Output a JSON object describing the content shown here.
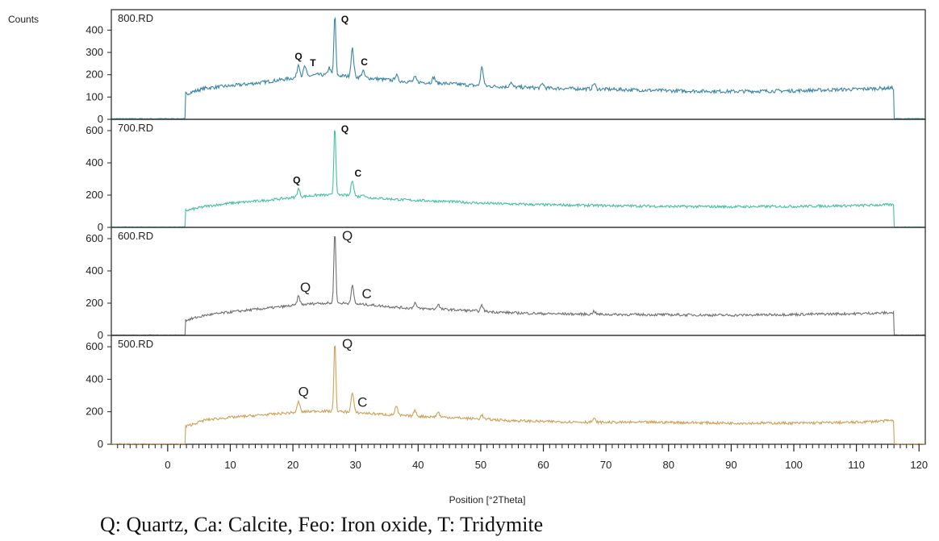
{
  "chart_data": {
    "type": "line",
    "ylabel": "Counts",
    "xlabel": "Position [°2Theta]",
    "xlim": [
      -9,
      121
    ],
    "x_ticks": [
      0,
      10,
      20,
      30,
      40,
      50,
      60,
      70,
      80,
      90,
      100,
      110,
      120
    ],
    "panels": [
      {
        "name": "800.RD",
        "color": "#3b86a6",
        "ylim": [
          0,
          470
        ],
        "y_ticks": [
          0,
          100,
          200,
          300,
          400
        ],
        "baseline": [
          [
            3,
            115
          ],
          [
            6,
            140
          ],
          [
            10,
            150
          ],
          [
            15,
            165
          ],
          [
            20,
            185
          ],
          [
            24,
            200
          ],
          [
            28,
            195
          ],
          [
            32,
            185
          ],
          [
            38,
            170
          ],
          [
            45,
            160
          ],
          [
            50,
            150
          ],
          [
            55,
            145
          ],
          [
            60,
            140
          ],
          [
            70,
            135
          ],
          [
            80,
            128
          ],
          [
            90,
            125
          ],
          [
            100,
            128
          ],
          [
            110,
            135
          ],
          [
            115,
            140
          ]
        ],
        "peaks": [
          [
            20.9,
            60
          ],
          [
            21.9,
            45
          ],
          [
            25.8,
            35
          ],
          [
            26.7,
            270
          ],
          [
            29.5,
            125
          ],
          [
            31.2,
            30
          ],
          [
            36.5,
            25
          ],
          [
            39.5,
            20
          ],
          [
            42.5,
            25
          ],
          [
            50.2,
            85
          ],
          [
            54.8,
            20
          ],
          [
            59.9,
            20
          ],
          [
            68.1,
            25
          ]
        ],
        "annotations": [
          {
            "text": "Q",
            "x": 20.9
          },
          {
            "text": "T",
            "x": 23.2
          },
          {
            "text": "Q",
            "x": 28.3
          },
          {
            "text": "C",
            "x": 31.4
          }
        ]
      },
      {
        "name": "700.RD",
        "color": "#44c0a0",
        "ylim": [
          0,
          640
        ],
        "y_ticks": [
          0,
          200,
          400,
          600
        ],
        "baseline": [
          [
            3,
            105
          ],
          [
            6,
            130
          ],
          [
            10,
            150
          ],
          [
            15,
            165
          ],
          [
            20,
            185
          ],
          [
            24,
            200
          ],
          [
            28,
            200
          ],
          [
            32,
            185
          ],
          [
            38,
            170
          ],
          [
            45,
            160
          ],
          [
            50,
            150
          ],
          [
            55,
            145
          ],
          [
            60,
            140
          ],
          [
            70,
            135
          ],
          [
            80,
            130
          ],
          [
            90,
            128
          ],
          [
            100,
            130
          ],
          [
            110,
            135
          ],
          [
            115,
            140
          ]
        ],
        "peaks": [
          [
            20.9,
            50
          ],
          [
            26.7,
            430
          ],
          [
            29.5,
            100
          ],
          [
            31.2,
            20
          ]
        ],
        "annotations": [
          {
            "text": "Q",
            "x": 20.6
          },
          {
            "text": "Q",
            "x": 28.3
          },
          {
            "text": "C",
            "x": 30.4
          }
        ]
      },
      {
        "name": "600.RD",
        "color": "#707070",
        "ylim": [
          0,
          640
        ],
        "y_ticks": [
          0,
          200,
          400,
          600
        ],
        "baseline": [
          [
            3,
            95
          ],
          [
            6,
            125
          ],
          [
            10,
            145
          ],
          [
            15,
            165
          ],
          [
            20,
            185
          ],
          [
            24,
            200
          ],
          [
            28,
            200
          ],
          [
            32,
            190
          ],
          [
            38,
            170
          ],
          [
            45,
            160
          ],
          [
            50,
            150
          ],
          [
            55,
            140
          ],
          [
            60,
            135
          ],
          [
            70,
            130
          ],
          [
            80,
            128
          ],
          [
            90,
            125
          ],
          [
            100,
            130
          ],
          [
            110,
            135
          ],
          [
            115,
            140
          ]
        ],
        "peaks": [
          [
            20.9,
            55
          ],
          [
            26.7,
            450
          ],
          [
            29.5,
            110
          ],
          [
            39.5,
            35
          ],
          [
            43.2,
            30
          ],
          [
            50.2,
            35
          ],
          [
            68.1,
            20
          ]
        ],
        "annotations": [
          {
            "text": "Q",
            "x": 22.0
          },
          {
            "text": "Q",
            "x": 28.7
          },
          {
            "text": "C",
            "x": 31.8
          }
        ]
      },
      {
        "name": "500.RD",
        "color": "#cfa055",
        "ylim": [
          0,
          640
        ],
        "y_ticks": [
          0,
          200,
          400,
          600
        ],
        "baseline": [
          [
            3,
            110
          ],
          [
            6,
            150
          ],
          [
            10,
            165
          ],
          [
            15,
            180
          ],
          [
            20,
            195
          ],
          [
            24,
            205
          ],
          [
            28,
            200
          ],
          [
            32,
            190
          ],
          [
            38,
            175
          ],
          [
            45,
            165
          ],
          [
            50,
            155
          ],
          [
            55,
            145
          ],
          [
            60,
            140
          ],
          [
            70,
            135
          ],
          [
            80,
            135
          ],
          [
            90,
            130
          ],
          [
            100,
            130
          ],
          [
            110,
            135
          ],
          [
            115,
            145
          ]
        ],
        "peaks": [
          [
            20.9,
            65
          ],
          [
            26.7,
            430
          ],
          [
            29.5,
            120
          ],
          [
            36.5,
            55
          ],
          [
            39.5,
            35
          ],
          [
            43.2,
            30
          ],
          [
            50.2,
            25
          ],
          [
            68.1,
            20
          ]
        ],
        "annotations": [
          {
            "text": "Q",
            "x": 21.7
          },
          {
            "text": "Q",
            "x": 28.7
          },
          {
            "text": "C",
            "x": 31.1
          }
        ]
      }
    ],
    "caption": "Q: Quartz, Ca: Calcite, Feo: Iron oxide, T: Tridymite"
  }
}
